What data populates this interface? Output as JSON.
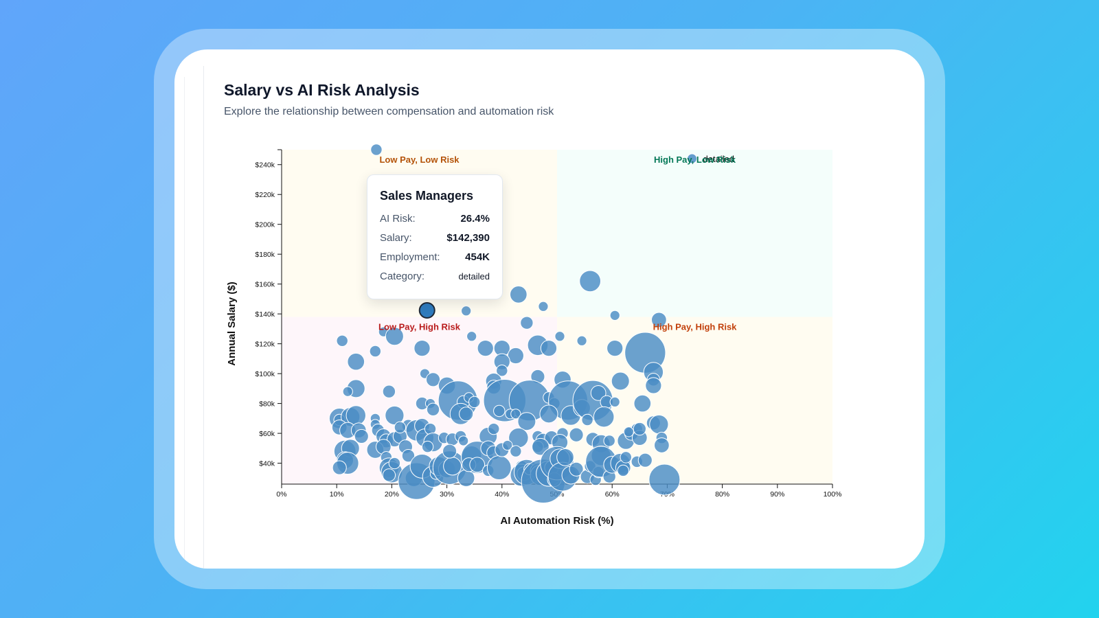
{
  "header": {
    "title": "Salary vs AI Risk Analysis",
    "subtitle": "Explore the relationship between compensation and automation risk"
  },
  "tooltip": {
    "title": "Sales Managers",
    "rows": [
      {
        "label": "AI Risk:",
        "value": "26.4%"
      },
      {
        "label": "Salary:",
        "value": "$142,390"
      },
      {
        "label": "Employment:",
        "value": "454K"
      },
      {
        "label": "Category:",
        "value": "detailed"
      }
    ]
  },
  "chart_data": {
    "type": "scatter",
    "title": "Salary vs AI Risk Analysis",
    "xlabel": "AI Automation Risk (%)",
    "ylabel": "Annual Salary ($)",
    "xlim": [
      0,
      100
    ],
    "ylim": [
      26000,
      250000
    ],
    "x_ticks": [
      0,
      10,
      20,
      30,
      40,
      50,
      60,
      70,
      80,
      90,
      100
    ],
    "x_tick_labels": [
      "0%",
      "10%",
      "20%",
      "30%",
      "40%",
      "50%",
      "60%",
      "70%",
      "80%",
      "90%",
      "100%"
    ],
    "y_ticks": [
      40000,
      60000,
      80000,
      100000,
      120000,
      140000,
      160000,
      180000,
      200000,
      220000,
      240000
    ],
    "y_tick_labels": [
      "$40k",
      "$60k",
      "$80k",
      "$100k",
      "$120k",
      "$140k",
      "$160k",
      "$180k",
      "$200k",
      "$220k",
      "$240k"
    ],
    "point_color": "#4a8cc4",
    "highlight_color": "#2f7bbd",
    "quadrants": [
      {
        "label": "Low Pay, Low Risk",
        "color": "#b45309",
        "fill": "#fffbeb",
        "x_range": [
          0,
          50
        ],
        "y_range": [
          138000,
          250000
        ],
        "label_pos": [
          25,
          243000
        ]
      },
      {
        "label": "High Pay, Low Risk",
        "color": "#047857",
        "fill": "#f0fdfa",
        "x_range": [
          50,
          100
        ],
        "y_range": [
          138000,
          250000
        ],
        "label_pos": [
          75,
          243000
        ]
      },
      {
        "label": "Low Pay, High Risk",
        "color": "#b91c1c",
        "fill": "#fdf2f8",
        "x_range": [
          0,
          50
        ],
        "y_range": [
          26000,
          138000
        ],
        "label_pos": [
          25,
          131000
        ]
      },
      {
        "label": "High Pay, High Risk",
        "color": "#c2410c",
        "fill": "#fffbeb",
        "x_range": [
          50,
          100
        ],
        "y_range": [
          26000,
          138000
        ],
        "label_pos": [
          75,
          131000
        ]
      }
    ],
    "highlight": {
      "name": "Sales Managers",
      "x": 26.4,
      "y": 142390,
      "size": 454
    },
    "outlier": {
      "x": 74.5,
      "y": 244000,
      "size": 60,
      "label": "detailed"
    },
    "points": [
      {
        "x": 17.2,
        "y": 250000,
        "s": 40
      },
      {
        "x": 43,
        "y": 153000,
        "s": 90
      },
      {
        "x": 56,
        "y": 162000,
        "s": 140
      },
      {
        "x": 47.5,
        "y": 145000,
        "s": 30
      },
      {
        "x": 33.5,
        "y": 142000,
        "s": 30
      },
      {
        "x": 60.5,
        "y": 139000,
        "s": 30
      },
      {
        "x": 44.5,
        "y": 134000,
        "s": 50
      },
      {
        "x": 68.5,
        "y": 136000,
        "s": 70
      },
      {
        "x": 11,
        "y": 122000,
        "s": 40
      },
      {
        "x": 18.5,
        "y": 128000,
        "s": 30
      },
      {
        "x": 20.5,
        "y": 125000,
        "s": 100
      },
      {
        "x": 25.5,
        "y": 117000,
        "s": 80
      },
      {
        "x": 34.5,
        "y": 125000,
        "s": 30
      },
      {
        "x": 37,
        "y": 117000,
        "s": 80
      },
      {
        "x": 40,
        "y": 117000,
        "s": 80
      },
      {
        "x": 42.5,
        "y": 112000,
        "s": 80
      },
      {
        "x": 46.5,
        "y": 119000,
        "s": 130
      },
      {
        "x": 48.5,
        "y": 117000,
        "s": 80
      },
      {
        "x": 50.5,
        "y": 125000,
        "s": 30
      },
      {
        "x": 54.5,
        "y": 122000,
        "s": 30
      },
      {
        "x": 60.5,
        "y": 117000,
        "s": 80
      },
      {
        "x": 66,
        "y": 114000,
        "s": 520
      },
      {
        "x": 17,
        "y": 115000,
        "s": 40
      },
      {
        "x": 13.5,
        "y": 108000,
        "s": 90
      },
      {
        "x": 40,
        "y": 108000,
        "s": 80
      },
      {
        "x": 40,
        "y": 102000,
        "s": 40
      },
      {
        "x": 26,
        "y": 100000,
        "s": 30
      },
      {
        "x": 27.5,
        "y": 96000,
        "s": 60
      },
      {
        "x": 30,
        "y": 92000,
        "s": 90
      },
      {
        "x": 38.5,
        "y": 95000,
        "s": 80
      },
      {
        "x": 38.5,
        "y": 91000,
        "s": 60
      },
      {
        "x": 46.5,
        "y": 98000,
        "s": 60
      },
      {
        "x": 51,
        "y": 96000,
        "s": 90
      },
      {
        "x": 61.5,
        "y": 95000,
        "s": 100
      },
      {
        "x": 67.5,
        "y": 101000,
        "s": 120
      },
      {
        "x": 67.5,
        "y": 96000,
        "s": 50
      },
      {
        "x": 67.5,
        "y": 92000,
        "s": 80
      },
      {
        "x": 13.5,
        "y": 90000,
        "s": 100
      },
      {
        "x": 12,
        "y": 88000,
        "s": 30
      },
      {
        "x": 19.5,
        "y": 88000,
        "s": 50
      },
      {
        "x": 25.5,
        "y": 80000,
        "s": 50
      },
      {
        "x": 27,
        "y": 80000,
        "s": 30
      },
      {
        "x": 27.5,
        "y": 76000,
        "s": 50
      },
      {
        "x": 32,
        "y": 82000,
        "s": 480
      },
      {
        "x": 33,
        "y": 81000,
        "s": 50
      },
      {
        "x": 34,
        "y": 84000,
        "s": 30
      },
      {
        "x": 35,
        "y": 81000,
        "s": 40
      },
      {
        "x": 32.5,
        "y": 73000,
        "s": 140
      },
      {
        "x": 33.5,
        "y": 73000,
        "s": 60
      },
      {
        "x": 40.5,
        "y": 82000,
        "s": 560
      },
      {
        "x": 45,
        "y": 82000,
        "s": 520
      },
      {
        "x": 48.5,
        "y": 84000,
        "s": 40
      },
      {
        "x": 49.5,
        "y": 80000,
        "s": 40
      },
      {
        "x": 52,
        "y": 82000,
        "s": 480
      },
      {
        "x": 52.5,
        "y": 72000,
        "s": 120
      },
      {
        "x": 54.5,
        "y": 77000,
        "s": 90
      },
      {
        "x": 56.5,
        "y": 82000,
        "s": 500
      },
      {
        "x": 57.5,
        "y": 87000,
        "s": 70
      },
      {
        "x": 59,
        "y": 81000,
        "s": 50
      },
      {
        "x": 60.5,
        "y": 81000,
        "s": 30
      },
      {
        "x": 58.5,
        "y": 71000,
        "s": 130
      },
      {
        "x": 55.5,
        "y": 69000,
        "s": 40
      },
      {
        "x": 41.5,
        "y": 73000,
        "s": 30
      },
      {
        "x": 42.5,
        "y": 73000,
        "s": 30
      },
      {
        "x": 39.5,
        "y": 75000,
        "s": 40
      },
      {
        "x": 44.5,
        "y": 68000,
        "s": 100
      },
      {
        "x": 48.5,
        "y": 73000,
        "s": 100
      },
      {
        "x": 65.5,
        "y": 80000,
        "s": 90
      },
      {
        "x": 10.5,
        "y": 70000,
        "s": 130
      },
      {
        "x": 10.5,
        "y": 69000,
        "s": 40
      },
      {
        "x": 12.5,
        "y": 71000,
        "s": 110
      },
      {
        "x": 13.5,
        "y": 72000,
        "s": 120
      },
      {
        "x": 10.5,
        "y": 64000,
        "s": 70
      },
      {
        "x": 12,
        "y": 62000,
        "s": 80
      },
      {
        "x": 14,
        "y": 62000,
        "s": 70
      },
      {
        "x": 14.5,
        "y": 58000,
        "s": 60
      },
      {
        "x": 17,
        "y": 70000,
        "s": 30
      },
      {
        "x": 17,
        "y": 66000,
        "s": 30
      },
      {
        "x": 17.5,
        "y": 62000,
        "s": 50
      },
      {
        "x": 18.5,
        "y": 58000,
        "s": 70
      },
      {
        "x": 20.5,
        "y": 72000,
        "s": 110
      },
      {
        "x": 19,
        "y": 55000,
        "s": 60
      },
      {
        "x": 20.5,
        "y": 56000,
        "s": 70
      },
      {
        "x": 21.5,
        "y": 58000,
        "s": 60
      },
      {
        "x": 23,
        "y": 65000,
        "s": 50
      },
      {
        "x": 24.5,
        "y": 62000,
        "s": 140
      },
      {
        "x": 25.5,
        "y": 65000,
        "s": 70
      },
      {
        "x": 26,
        "y": 57000,
        "s": 100
      },
      {
        "x": 27,
        "y": 63000,
        "s": 40
      },
      {
        "x": 27.5,
        "y": 54000,
        "s": 110
      },
      {
        "x": 29.5,
        "y": 57000,
        "s": 40
      },
      {
        "x": 31,
        "y": 56000,
        "s": 50
      },
      {
        "x": 32.5,
        "y": 58000,
        "s": 40
      },
      {
        "x": 33,
        "y": 55000,
        "s": 30
      },
      {
        "x": 37.5,
        "y": 58000,
        "s": 100
      },
      {
        "x": 38.5,
        "y": 63000,
        "s": 40
      },
      {
        "x": 43,
        "y": 57000,
        "s": 120
      },
      {
        "x": 46.5,
        "y": 58000,
        "s": 40
      },
      {
        "x": 47.5,
        "y": 55000,
        "s": 70
      },
      {
        "x": 49,
        "y": 57000,
        "s": 60
      },
      {
        "x": 51,
        "y": 60000,
        "s": 40
      },
      {
        "x": 50.5,
        "y": 54000,
        "s": 80
      },
      {
        "x": 53.5,
        "y": 59000,
        "s": 60
      },
      {
        "x": 56.5,
        "y": 56000,
        "s": 60
      },
      {
        "x": 58,
        "y": 53000,
        "s": 100
      },
      {
        "x": 59.5,
        "y": 55000,
        "s": 40
      },
      {
        "x": 62.5,
        "y": 55000,
        "s": 90
      },
      {
        "x": 63.5,
        "y": 60000,
        "s": 60
      },
      {
        "x": 64.5,
        "y": 63000,
        "s": 40
      },
      {
        "x": 65,
        "y": 57000,
        "s": 70
      },
      {
        "x": 65,
        "y": 63000,
        "s": 50
      },
      {
        "x": 63,
        "y": 61000,
        "s": 30
      },
      {
        "x": 67.5,
        "y": 67000,
        "s": 60
      },
      {
        "x": 68.5,
        "y": 66000,
        "s": 110
      },
      {
        "x": 69,
        "y": 57000,
        "s": 40
      },
      {
        "x": 69,
        "y": 52000,
        "s": 70
      },
      {
        "x": 11.5,
        "y": 48000,
        "s": 150
      },
      {
        "x": 12.5,
        "y": 50000,
        "s": 100
      },
      {
        "x": 11.5,
        "y": 42000,
        "s": 90
      },
      {
        "x": 12,
        "y": 40000,
        "s": 150
      },
      {
        "x": 10.5,
        "y": 37000,
        "s": 60
      },
      {
        "x": 17,
        "y": 49000,
        "s": 90
      },
      {
        "x": 18.5,
        "y": 51000,
        "s": 70
      },
      {
        "x": 19,
        "y": 44000,
        "s": 40
      },
      {
        "x": 19.5,
        "y": 37000,
        "s": 120
      },
      {
        "x": 20,
        "y": 34000,
        "s": 140
      },
      {
        "x": 19.5,
        "y": 32000,
        "s": 50
      },
      {
        "x": 20.5,
        "y": 40000,
        "s": 40
      },
      {
        "x": 22.5,
        "y": 51000,
        "s": 60
      },
      {
        "x": 23,
        "y": 45000,
        "s": 50
      },
      {
        "x": 24,
        "y": 30000,
        "s": 90
      },
      {
        "x": 24.5,
        "y": 28000,
        "s": 420
      },
      {
        "x": 25.5,
        "y": 38000,
        "s": 180
      },
      {
        "x": 27.5,
        "y": 31000,
        "s": 140
      },
      {
        "x": 28,
        "y": 33000,
        "s": 40
      },
      {
        "x": 28.5,
        "y": 38000,
        "s": 110
      },
      {
        "x": 30,
        "y": 36000,
        "s": 90
      },
      {
        "x": 30.5,
        "y": 37000,
        "s": 350
      },
      {
        "x": 31,
        "y": 38000,
        "s": 100
      },
      {
        "x": 33.5,
        "y": 30000,
        "s": 90
      },
      {
        "x": 34.5,
        "y": 45000,
        "s": 120
      },
      {
        "x": 35.5,
        "y": 44000,
        "s": 320
      },
      {
        "x": 34,
        "y": 39000,
        "s": 60
      },
      {
        "x": 35.5,
        "y": 39000,
        "s": 70
      },
      {
        "x": 37.5,
        "y": 35000,
        "s": 40
      },
      {
        "x": 37.5,
        "y": 50000,
        "s": 70
      },
      {
        "x": 38.5,
        "y": 47000,
        "s": 60
      },
      {
        "x": 39.5,
        "y": 37000,
        "s": 180
      },
      {
        "x": 40,
        "y": 49000,
        "s": 60
      },
      {
        "x": 41,
        "y": 52000,
        "s": 30
      },
      {
        "x": 42.5,
        "y": 48000,
        "s": 40
      },
      {
        "x": 43.5,
        "y": 38000,
        "s": 40
      },
      {
        "x": 43.5,
        "y": 32000,
        "s": 150
      },
      {
        "x": 44,
        "y": 33000,
        "s": 60
      },
      {
        "x": 44.5,
        "y": 34000,
        "s": 200
      },
      {
        "x": 45,
        "y": 36000,
        "s": 40
      },
      {
        "x": 46.5,
        "y": 35000,
        "s": 70
      },
      {
        "x": 46.5,
        "y": 51000,
        "s": 40
      },
      {
        "x": 47,
        "y": 51000,
        "s": 90
      },
      {
        "x": 47,
        "y": 32000,
        "s": 130
      },
      {
        "x": 47.5,
        "y": 28000,
        "s": 600
      },
      {
        "x": 48.5,
        "y": 33000,
        "s": 200
      },
      {
        "x": 49,
        "y": 37000,
        "s": 60
      },
      {
        "x": 49.5,
        "y": 29000,
        "s": 60
      },
      {
        "x": 50,
        "y": 40000,
        "s": 350
      },
      {
        "x": 50.5,
        "y": 43000,
        "s": 120
      },
      {
        "x": 51,
        "y": 31000,
        "s": 260
      },
      {
        "x": 51.5,
        "y": 44000,
        "s": 90
      },
      {
        "x": 52.5,
        "y": 32000,
        "s": 100
      },
      {
        "x": 53.5,
        "y": 36000,
        "s": 60
      },
      {
        "x": 55.5,
        "y": 31000,
        "s": 60
      },
      {
        "x": 56,
        "y": 38000,
        "s": 40
      },
      {
        "x": 57,
        "y": 29000,
        "s": 40
      },
      {
        "x": 57.5,
        "y": 34000,
        "s": 40
      },
      {
        "x": 58,
        "y": 45000,
        "s": 120
      },
      {
        "x": 58,
        "y": 41000,
        "s": 300
      },
      {
        "x": 59.5,
        "y": 31000,
        "s": 50
      },
      {
        "x": 60,
        "y": 39000,
        "s": 90
      },
      {
        "x": 61.5,
        "y": 40000,
        "s": 120
      },
      {
        "x": 62,
        "y": 37000,
        "s": 70
      },
      {
        "x": 62,
        "y": 35000,
        "s": 40
      },
      {
        "x": 62.5,
        "y": 44000,
        "s": 40
      },
      {
        "x": 64.5,
        "y": 41000,
        "s": 40
      },
      {
        "x": 66,
        "y": 42000,
        "s": 60
      },
      {
        "x": 69.5,
        "y": 29000,
        "s": 300
      },
      {
        "x": 30.5,
        "y": 48000,
        "s": 60
      },
      {
        "x": 26.5,
        "y": 51000,
        "s": 40
      },
      {
        "x": 21.5,
        "y": 64000,
        "s": 40
      }
    ]
  }
}
